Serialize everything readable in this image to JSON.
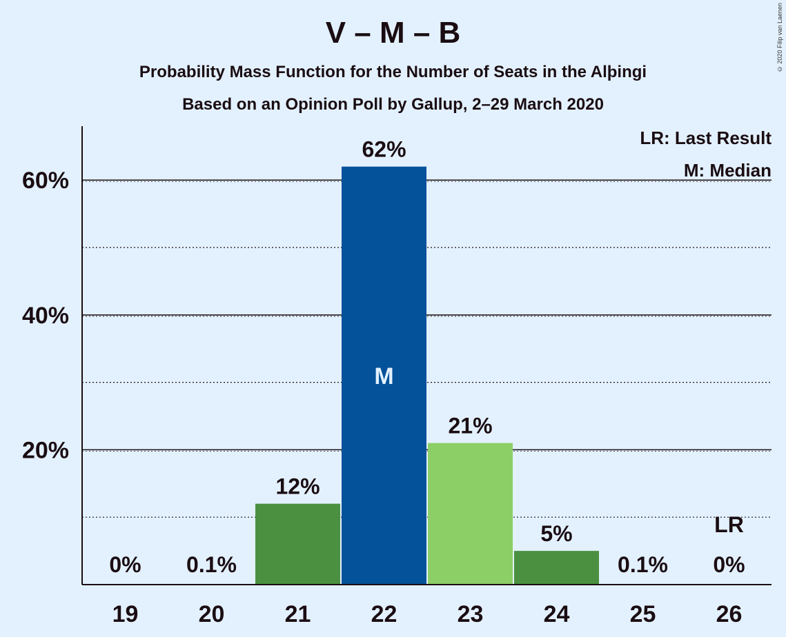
{
  "title": "V – M – B",
  "subtitle1": "Probability Mass Function for the Number of Seats in the Alþingi",
  "subtitle2": "Based on an Opinion Poll by Gallup, 2–29 March 2020",
  "copyright": "© 2020 Filip van Laenen",
  "legend": {
    "lr": "LR: Last Result",
    "m": "M: Median"
  },
  "colors": {
    "background": "#e3f1ff",
    "dark_green": "#4a9040",
    "blue": "#03529a",
    "light_green": "#8ccf66"
  },
  "chart_data": {
    "type": "bar",
    "categories": [
      "19",
      "20",
      "21",
      "22",
      "23",
      "24",
      "25",
      "26"
    ],
    "values": [
      0,
      0.1,
      12,
      62,
      21,
      5,
      0.1,
      0
    ],
    "value_labels": [
      "0%",
      "0.1%",
      "12%",
      "62%",
      "21%",
      "5%",
      "0.1%",
      "0%"
    ],
    "bar_colors": [
      "#4a9040",
      "#4a9040",
      "#4a9040",
      "#03529a",
      "#8ccf66",
      "#4a9040",
      "#4a9040",
      "#4a9040"
    ],
    "ylim": [
      0,
      68
    ],
    "yticks": [
      20,
      40,
      60
    ],
    "ytick_labels": [
      "20%",
      "40%",
      "60%"
    ],
    "minor_gridlines": [
      10,
      30,
      50
    ],
    "median_category": "22",
    "median_label": "M",
    "last_result_category": "26",
    "last_result_label": "LR",
    "grid": true,
    "legend_position": "top-right"
  }
}
